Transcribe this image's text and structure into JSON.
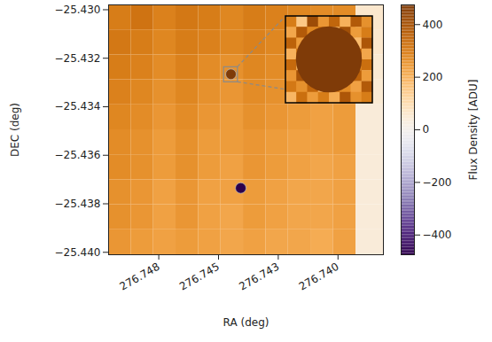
{
  "chart_data": {
    "type": "heatmap",
    "x_label": "RA (deg)",
    "y_label": "DEC (deg)",
    "xlim": [
      276.7496,
      276.7381
    ],
    "ylim": [
      -25.4401,
      -25.4298
    ],
    "xticks": [
      {
        "value": 276.7475,
        "label": "276.748"
      },
      {
        "value": 276.745,
        "label": "276.745"
      },
      {
        "value": 276.7425,
        "label": "276.743"
      },
      {
        "value": 276.74,
        "label": "276.740"
      }
    ],
    "yticks": [
      {
        "value": -25.43,
        "label": "−25.430"
      },
      {
        "value": -25.432,
        "label": "−25.432"
      },
      {
        "value": -25.434,
        "label": "−25.434"
      },
      {
        "value": -25.436,
        "label": "−25.436"
      },
      {
        "value": -25.438,
        "label": "−25.438"
      },
      {
        "value": -25.44,
        "label": "−25.440"
      }
    ],
    "color": "PuOr",
    "cells": {
      "x_edges": [
        276.7496,
        276.74866,
        276.74772,
        276.74678,
        276.74584,
        276.7449,
        276.74396,
        276.74302,
        276.74208,
        276.74114,
        276.7402,
        276.73925,
        276.7381
      ],
      "y_edges": [
        -25.4298,
        -25.43083,
        -25.43186,
        -25.43289,
        -25.43392,
        -25.43495,
        -25.43598,
        -25.43701,
        -25.43804,
        -25.43907,
        -25.4401
      ],
      "values": [
        [
          300,
          320,
          290,
          310,
          300,
          280,
          300,
          290,
          280,
          270,
          270,
          60
        ],
        [
          310,
          300,
          280,
          300,
          290,
          280,
          290,
          280,
          270,
          260,
          260,
          60
        ],
        [
          300,
          290,
          270,
          290,
          270,
          260,
          280,
          270,
          260,
          250,
          260,
          50
        ],
        [
          290,
          280,
          260,
          280,
          260,
          250,
          270,
          260,
          250,
          240,
          250,
          50
        ],
        [
          280,
          270,
          250,
          270,
          250,
          240,
          260,
          250,
          240,
          230,
          240,
          40
        ],
        [
          270,
          260,
          240,
          260,
          240,
          240,
          250,
          240,
          230,
          230,
          240,
          40
        ],
        [
          270,
          260,
          240,
          260,
          240,
          230,
          250,
          240,
          230,
          220,
          230,
          40
        ],
        [
          260,
          250,
          230,
          250,
          230,
          230,
          240,
          230,
          220,
          220,
          230,
          40
        ],
        [
          260,
          250,
          230,
          250,
          230,
          220,
          240,
          230,
          220,
          220,
          230,
          40
        ],
        [
          250,
          240,
          230,
          240,
          230,
          220,
          230,
          220,
          220,
          210,
          230,
          40
        ]
      ]
    },
    "sources": [
      {
        "ra": 276.74448,
        "dec": -25.43266,
        "value": 500
      },
      {
        "ra": 276.74407,
        "dec": -25.43735,
        "value": -500
      }
    ],
    "zoom": {
      "ra": [
        276.74477,
        276.74419
      ],
      "dec": [
        -25.43237,
        -25.43299
      ],
      "values": [
        [
          300,
          150,
          420,
          250,
          350,
          200,
          380,
          260
        ],
        [
          220,
          380,
          280,
          330,
          190,
          410,
          240,
          300
        ],
        [
          360,
          240,
          310,
          200,
          270,
          330,
          180,
          390
        ],
        [
          200,
          330,
          260,
          380,
          300,
          250,
          350,
          220
        ],
        [
          340,
          190,
          300,
          270,
          230,
          310,
          280,
          330
        ],
        [
          250,
          400,
          220,
          330,
          290,
          200,
          360,
          240
        ],
        [
          310,
          260,
          350,
          180,
          340,
          270,
          230,
          380
        ],
        [
          190,
          330,
          240,
          300,
          210,
          390,
          260,
          300
        ]
      ]
    },
    "colorbar": {
      "label": "Flux Density [ADU]",
      "range": [
        -475,
        475
      ],
      "ticks": [
        {
          "value": -400,
          "label": "−400"
        },
        {
          "value": -200,
          "label": "−200"
        },
        0,
        200,
        400
      ]
    }
  }
}
